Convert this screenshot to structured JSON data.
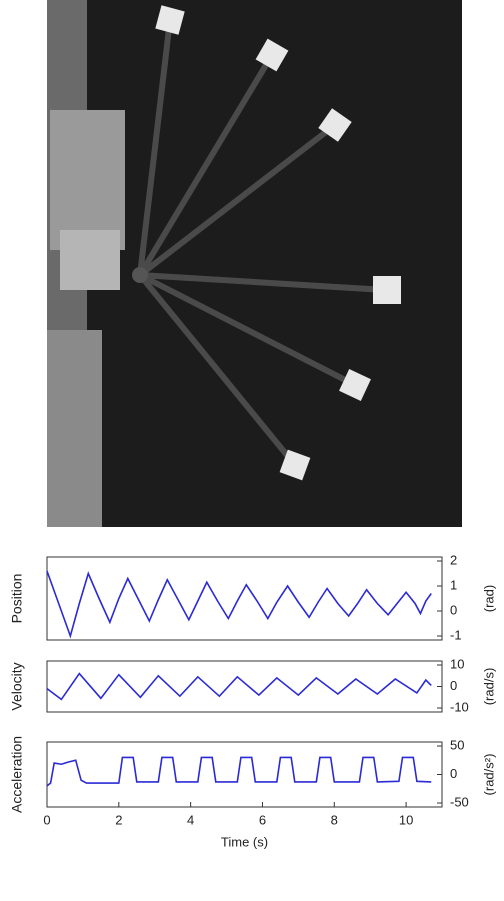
{
  "chart_data": [
    {
      "type": "line",
      "ylabel": "Position",
      "ylabel_right": "(rad)",
      "color": "#2b2bd6",
      "xlim": [
        0,
        11
      ],
      "ylim": [
        -1,
        2
      ],
      "yticks": [
        -1,
        0,
        1,
        2
      ],
      "x": [
        0,
        0.3,
        0.65,
        0.9,
        1.15,
        1.45,
        1.75,
        2.0,
        2.25,
        2.55,
        2.85,
        3.1,
        3.35,
        3.65,
        3.95,
        4.2,
        4.45,
        4.75,
        5.05,
        5.3,
        5.55,
        5.85,
        6.15,
        6.4,
        6.7,
        7.0,
        7.3,
        7.55,
        7.8,
        8.1,
        8.4,
        8.65,
        8.9,
        9.2,
        9.5,
        9.75,
        10.0,
        10.25,
        10.4,
        10.55,
        10.7
      ],
      "values": [
        1.6,
        0.4,
        -1.0,
        0.3,
        1.5,
        0.5,
        -0.45,
        0.5,
        1.3,
        0.45,
        -0.4,
        0.45,
        1.25,
        0.45,
        -0.35,
        0.4,
        1.15,
        0.4,
        -0.3,
        0.4,
        1.05,
        0.4,
        -0.3,
        0.35,
        1.0,
        0.35,
        -0.25,
        0.35,
        0.9,
        0.3,
        -0.2,
        0.3,
        0.85,
        0.3,
        -0.15,
        0.3,
        0.75,
        0.3,
        -0.1,
        0.4,
        0.7
      ]
    },
    {
      "type": "line",
      "ylabel": "Velocity",
      "ylabel_right": "(rad/s)",
      "color": "#2b2bd6",
      "xlim": [
        0,
        11
      ],
      "ylim": [
        -10,
        10
      ],
      "yticks": [
        -10,
        0,
        10
      ],
      "x": [
        0,
        0.4,
        0.9,
        1.5,
        2.0,
        2.6,
        3.1,
        3.7,
        4.2,
        4.8,
        5.3,
        5.9,
        6.4,
        7.0,
        7.5,
        8.1,
        8.6,
        9.2,
        9.7,
        10.3,
        10.55,
        10.7
      ],
      "values": [
        -1,
        -6,
        6,
        -5.5,
        5.5,
        -5,
        5,
        -4.5,
        4.5,
        -4.5,
        4.5,
        -4,
        4,
        -4,
        4,
        -3.5,
        3.5,
        -3.5,
        3.5,
        -3,
        3,
        0.5
      ]
    },
    {
      "type": "line",
      "ylabel": "Acceleration",
      "ylabel_right": "(rad/s²)",
      "xlabel": "Time (s)",
      "color": "#2b2bd6",
      "xlim": [
        0,
        11
      ],
      "ylim": [
        -50,
        50
      ],
      "yticks": [
        -50,
        0,
        50
      ],
      "xticks": [
        0,
        2,
        4,
        6,
        8,
        10
      ],
      "x": [
        0,
        0.1,
        0.2,
        0.4,
        0.6,
        0.8,
        0.95,
        1.1,
        2.0,
        2.1,
        2.4,
        2.5,
        3.1,
        3.2,
        3.5,
        3.6,
        4.2,
        4.3,
        4.6,
        4.7,
        5.3,
        5.4,
        5.7,
        5.8,
        6.4,
        6.5,
        6.8,
        6.9,
        7.5,
        7.6,
        7.9,
        8.0,
        8.7,
        8.8,
        9.1,
        9.2,
        9.8,
        9.9,
        10.2,
        10.3,
        10.7
      ],
      "values": [
        -20,
        -15,
        20,
        18,
        22,
        25,
        -10,
        -15,
        -15,
        30,
        30,
        -13,
        -13,
        30,
        30,
        -13,
        -13,
        30,
        30,
        -13,
        -13,
        30,
        30,
        -13,
        -13,
        30,
        30,
        -13,
        -13,
        30,
        30,
        -13,
        -13,
        30,
        30,
        -13,
        -12,
        30,
        30,
        -12,
        -13
      ]
    }
  ]
}
